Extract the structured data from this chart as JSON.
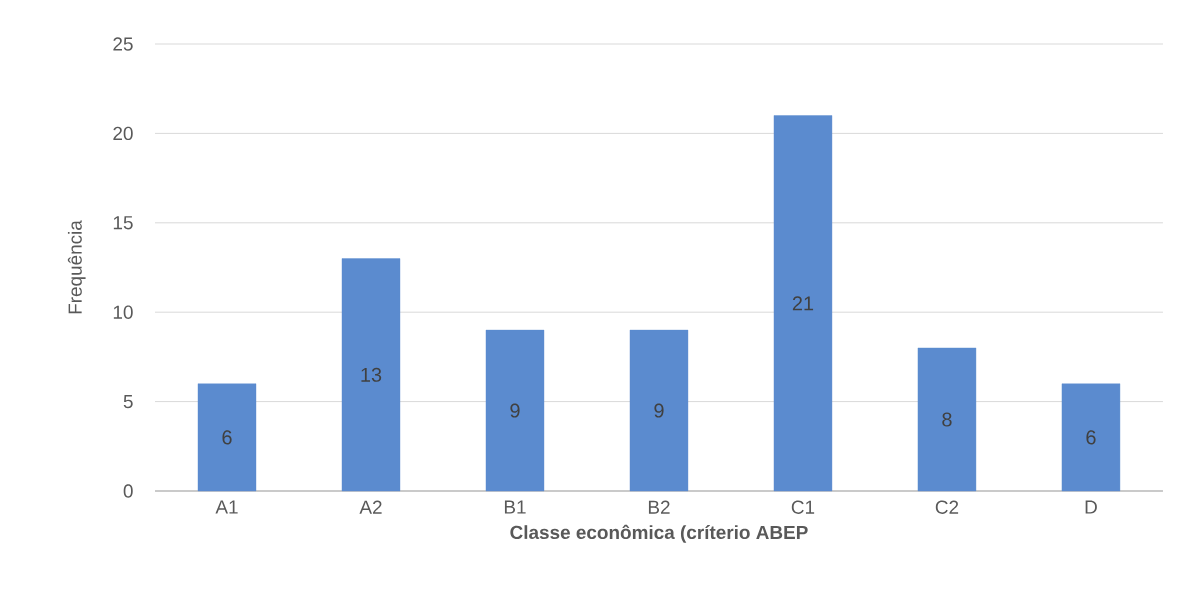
{
  "chart_data": {
    "type": "bar",
    "xlabel": "Classe econômica (críterio ABEP",
    "ylabel": "Frequência",
    "categories": [
      "A1",
      "A2",
      "B1",
      "B2",
      "C1",
      "C2",
      "D"
    ],
    "values": [
      6,
      13,
      9,
      9,
      21,
      8,
      6
    ],
    "color": "#5b8bcf",
    "ylim": [
      0,
      25
    ],
    "yticks": [
      0,
      5,
      10,
      15,
      20,
      25
    ],
    "grid": "y",
    "data_labels": true
  }
}
